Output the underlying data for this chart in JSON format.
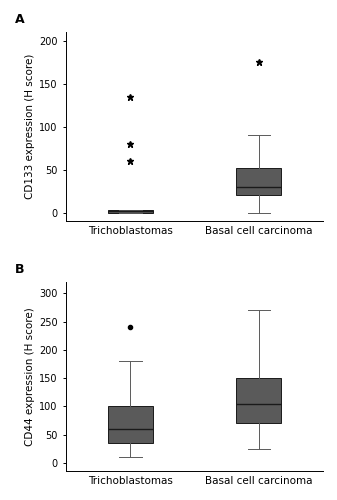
{
  "panel_A": {
    "title": "A",
    "ylabel": "CD133 expression (H score)",
    "ylim": [
      -10,
      210
    ],
    "yticks": [
      0,
      50,
      100,
      150,
      200
    ],
    "categories": [
      "Trichoblastomas",
      "Basal cell carcinoma"
    ],
    "boxes": [
      {
        "q1": 0,
        "median": 2,
        "q3": 3,
        "whislo": 0,
        "whishi": 3,
        "fliers": [
          60,
          80,
          135
        ]
      },
      {
        "q1": 20,
        "median": 30,
        "q3": 52,
        "whislo": 0,
        "whishi": 90,
        "fliers": [
          175
        ]
      }
    ],
    "flier_markers": [
      "*",
      "*"
    ],
    "flier_sizes": [
      5,
      5
    ]
  },
  "panel_B": {
    "title": "B",
    "ylabel": "CD44 expression (H score)",
    "ylim": [
      -15,
      320
    ],
    "yticks": [
      0,
      50,
      100,
      150,
      200,
      250,
      300
    ],
    "categories": [
      "Trichoblastomas",
      "Basal cell carcinoma"
    ],
    "boxes": [
      {
        "q1": 35,
        "median": 60,
        "q3": 100,
        "whislo": 10,
        "whishi": 180,
        "fliers": [
          240
        ]
      },
      {
        "q1": 70,
        "median": 105,
        "q3": 150,
        "whislo": 25,
        "whishi": 270,
        "fliers": []
      }
    ],
    "flier_markers": [
      "o",
      "o"
    ],
    "flier_sizes": [
      3,
      3
    ]
  },
  "box_color": "#5a5a5a",
  "median_color": "#1a1a1a",
  "whisker_color": "#5a5a5a",
  "cap_color": "#5a5a5a",
  "box_width": 0.35,
  "positions": [
    1,
    2
  ],
  "xlim": [
    0.5,
    2.5
  ],
  "background_color": "#ffffff",
  "label_fontsize": 7.5,
  "tick_fontsize": 7,
  "title_fontsize": 9,
  "title_fontweight": "bold",
  "linewidth": 0.7
}
